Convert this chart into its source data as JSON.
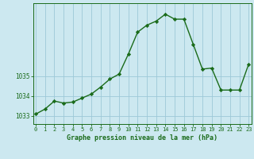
{
  "x": [
    0,
    1,
    2,
    3,
    4,
    5,
    6,
    7,
    8,
    9,
    10,
    11,
    12,
    13,
    14,
    15,
    16,
    17,
    18,
    19,
    20,
    21,
    22,
    23
  ],
  "y": [
    1033.1,
    1033.35,
    1033.75,
    1033.65,
    1033.7,
    1033.9,
    1034.1,
    1034.45,
    1034.85,
    1035.1,
    1036.1,
    1037.2,
    1037.55,
    1037.75,
    1038.1,
    1037.85,
    1037.85,
    1036.6,
    1035.35,
    1035.4,
    1034.3,
    1034.3,
    1034.3,
    1035.6
  ],
  "line_color": "#1a6b1a",
  "marker_color": "#1a6b1a",
  "bg_color": "#cce8f0",
  "grid_color": "#9dc8d8",
  "xlabel": "Graphe pression niveau de la mer (hPa)",
  "xlabel_color": "#1a6b1a",
  "tick_color": "#1a6b1a",
  "ylabel_ticks": [
    1033,
    1034,
    1035
  ],
  "ylim": [
    1032.6,
    1038.65
  ],
  "xlim": [
    -0.3,
    23.3
  ],
  "figsize": [
    3.2,
    2.0
  ],
  "dpi": 100
}
